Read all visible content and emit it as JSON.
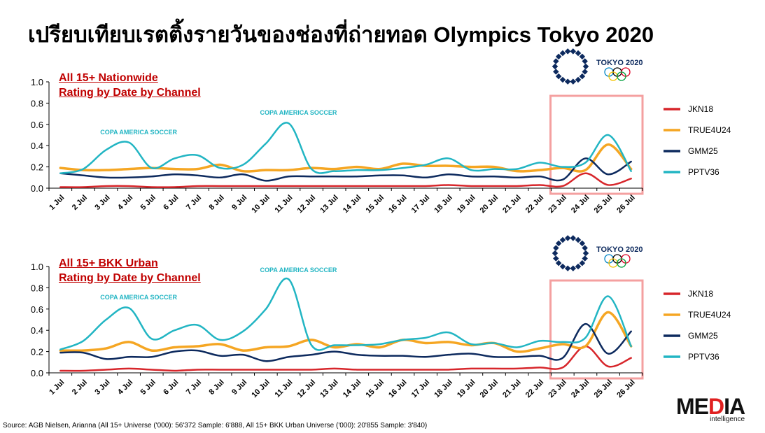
{
  "title": "เปรียบเทียบเรตติ้งรายวันของช่องที่ถ่ายทอด Olympics Tokyo 2020",
  "source": "Source: AGB Nielsen, Arianna (All 15+ Universe ('000): 56'372 Sample: 6'888, All 15+ BKK Urban Universe ('000): 20'855 Sample: 3'840)",
  "logo": {
    "text": "MEDIA",
    "sub": "intelligence",
    "olympic_text": "TOKYO 2020"
  },
  "chart_data": [
    {
      "type": "line",
      "title_line1": "All 15+ Nationwide",
      "title_line2": "Rating by Date by Channel",
      "ylim": [
        0,
        1.0
      ],
      "yticks": [
        "0.0",
        "0.2",
        "0.4",
        "0.6",
        "0.8",
        "1.0"
      ],
      "legend_position": "right",
      "highlight": [
        "23 Jul",
        "26 Jul"
      ],
      "categories": [
        "1 Jul",
        "2 Jul",
        "3 Jul",
        "4 Jul",
        "5 Jul",
        "6 Jul",
        "7 Jul",
        "8 Jul",
        "9 Jul",
        "10 Jul",
        "11 Jul",
        "12 Jul",
        "13 Jul",
        "14 Jul",
        "15 Jul",
        "16 Jul",
        "17 Jul",
        "18 Jul",
        "19 Jul",
        "20 Jul",
        "21 Jul",
        "22 Jul",
        "23 Jul",
        "24 Jul",
        "25 Jul",
        "26 Jul"
      ],
      "annotations": [
        {
          "text": "COPA AMERICA SOCCER",
          "at": "4 Jul"
        },
        {
          "text": "COPA AMERICA SOCCER",
          "at": "11 Jul"
        }
      ],
      "series": [
        {
          "name": "JKN18",
          "color": "#d7262b",
          "values": [
            0.01,
            0.01,
            0.02,
            0.02,
            0.01,
            0.01,
            0.02,
            0.02,
            0.02,
            0.02,
            0.02,
            0.02,
            0.02,
            0.02,
            0.02,
            0.02,
            0.02,
            0.03,
            0.02,
            0.02,
            0.02,
            0.03,
            0.02,
            0.14,
            0.03,
            0.09
          ]
        },
        {
          "name": "TRUE4U24",
          "color": "#f5a623",
          "values": [
            0.19,
            0.17,
            0.17,
            0.18,
            0.19,
            0.18,
            0.18,
            0.22,
            0.16,
            0.17,
            0.17,
            0.19,
            0.18,
            0.2,
            0.18,
            0.23,
            0.21,
            0.21,
            0.2,
            0.2,
            0.16,
            0.17,
            0.19,
            0.17,
            0.41,
            0.18
          ]
        },
        {
          "name": "GMM25",
          "color": "#0d2a5e",
          "values": [
            0.14,
            0.12,
            0.1,
            0.1,
            0.11,
            0.13,
            0.12,
            0.1,
            0.13,
            0.07,
            0.11,
            0.11,
            0.11,
            0.11,
            0.12,
            0.12,
            0.1,
            0.13,
            0.11,
            0.11,
            0.1,
            0.11,
            0.08,
            0.28,
            0.13,
            0.25
          ]
        },
        {
          "name": "PPTV36",
          "color": "#22b5c3",
          "values": [
            0.14,
            0.18,
            0.36,
            0.43,
            0.19,
            0.28,
            0.31,
            0.19,
            0.22,
            0.42,
            0.61,
            0.18,
            0.16,
            0.17,
            0.17,
            0.19,
            0.22,
            0.28,
            0.17,
            0.18,
            0.18,
            0.24,
            0.2,
            0.24,
            0.5,
            0.16
          ]
        }
      ]
    },
    {
      "type": "line",
      "title_line1": "All 15+ BKK Urban",
      "title_line2": "Rating by Date by Channel",
      "ylim": [
        0,
        1.0
      ],
      "yticks": [
        "0.0",
        "0.2",
        "0.4",
        "0.6",
        "0.8",
        "1.0"
      ],
      "legend_position": "right",
      "highlight": [
        "23 Jul",
        "26 Jul"
      ],
      "categories": [
        "1 Jul",
        "2 Jul",
        "3 Jul",
        "4 Jul",
        "5 Jul",
        "6 Jul",
        "7 Jul",
        "8 Jul",
        "9 Jul",
        "10 Jul",
        "11 Jul",
        "12 Jul",
        "13 Jul",
        "14 Jul",
        "15 Jul",
        "16 Jul",
        "17 Jul",
        "18 Jul",
        "19 Jul",
        "20 Jul",
        "21 Jul",
        "22 Jul",
        "23 Jul",
        "24 Jul",
        "25 Jul",
        "26 Jul"
      ],
      "annotations": [
        {
          "text": "COPA AMERICA SOCCER",
          "at": "4 Jul"
        },
        {
          "text": "COPA AMERICA SOCCER",
          "at": "11 Jul"
        }
      ],
      "series": [
        {
          "name": "JKN18",
          "color": "#d7262b",
          "values": [
            0.02,
            0.02,
            0.03,
            0.04,
            0.03,
            0.02,
            0.03,
            0.03,
            0.03,
            0.03,
            0.03,
            0.03,
            0.04,
            0.03,
            0.03,
            0.03,
            0.03,
            0.03,
            0.04,
            0.04,
            0.04,
            0.05,
            0.05,
            0.25,
            0.06,
            0.14
          ]
        },
        {
          "name": "TRUE4U24",
          "color": "#f5a623",
          "values": [
            0.21,
            0.21,
            0.23,
            0.29,
            0.21,
            0.24,
            0.25,
            0.27,
            0.21,
            0.24,
            0.25,
            0.31,
            0.24,
            0.27,
            0.24,
            0.31,
            0.28,
            0.29,
            0.26,
            0.28,
            0.2,
            0.23,
            0.27,
            0.25,
            0.57,
            0.25
          ]
        },
        {
          "name": "GMM25",
          "color": "#0d2a5e",
          "values": [
            0.19,
            0.19,
            0.13,
            0.15,
            0.15,
            0.2,
            0.21,
            0.16,
            0.17,
            0.11,
            0.15,
            0.17,
            0.2,
            0.17,
            0.16,
            0.16,
            0.15,
            0.17,
            0.18,
            0.15,
            0.15,
            0.16,
            0.14,
            0.46,
            0.18,
            0.39
          ]
        },
        {
          "name": "PPTV36",
          "color": "#22b5c3",
          "values": [
            0.22,
            0.3,
            0.5,
            0.61,
            0.32,
            0.4,
            0.45,
            0.31,
            0.39,
            0.6,
            0.88,
            0.26,
            0.26,
            0.26,
            0.27,
            0.31,
            0.33,
            0.38,
            0.27,
            0.28,
            0.24,
            0.3,
            0.29,
            0.33,
            0.72,
            0.25
          ]
        }
      ]
    }
  ]
}
